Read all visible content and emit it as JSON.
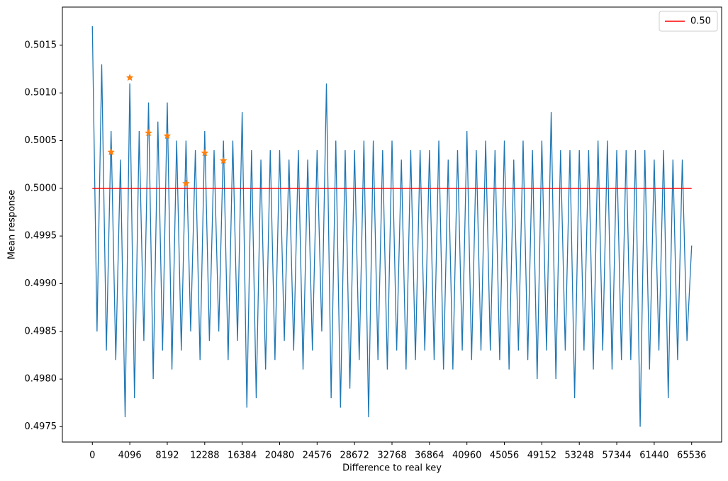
{
  "chart_data": {
    "type": "line",
    "xlabel": "Difference to real key",
    "ylabel": "Mean response",
    "xlim": [
      -3277,
      68812
    ],
    "ylim": [
      0.49734,
      0.5019
    ],
    "xticks": [
      0,
      4096,
      8192,
      12288,
      16384,
      20480,
      24576,
      28672,
      32768,
      36864,
      40960,
      45056,
      49152,
      53248,
      57344,
      61440,
      65536
    ],
    "yticks": [
      0.4975,
      {
        "value": 0.498,
        "label": "0.4980"
      },
      0.4985,
      {
        "value": 0.499,
        "label": "0.4990"
      },
      0.4995,
      {
        "value": 0.5,
        "label": "0.5000"
      },
      0.5005,
      {
        "value": 0.501,
        "label": "0.5010"
      },
      0.5015
    ],
    "legend": "upper right",
    "series": [
      {
        "color": "#1f77b4",
        "marker": "none",
        "x": [
          0,
          512,
          1024,
          1536,
          2048,
          2560,
          3072,
          3584,
          4096,
          4608,
          5120,
          5632,
          6144,
          6656,
          7168,
          7680,
          8192,
          8704,
          9216,
          9728,
          10240,
          10752,
          11264,
          11776,
          12288,
          12800,
          13312,
          13824,
          14336,
          14848,
          15360,
          15872,
          16384,
          16896,
          17408,
          17920,
          18432,
          18944,
          19456,
          19968,
          20480,
          20992,
          21504,
          22016,
          22528,
          23040,
          23552,
          24064,
          24576,
          25088,
          25600,
          26112,
          26624,
          27136,
          27648,
          28160,
          28672,
          29184,
          29696,
          30208,
          30720,
          31232,
          31744,
          32256,
          32768,
          33280,
          33792,
          34304,
          34816,
          35328,
          35840,
          36352,
          36864,
          37376,
          37888,
          38400,
          38912,
          39424,
          39936,
          40448,
          40960,
          41472,
          41984,
          42496,
          43008,
          43520,
          44032,
          44544,
          45056,
          45568,
          46080,
          46592,
          47104,
          47616,
          48128,
          48640,
          49152,
          49664,
          50176,
          50688,
          51200,
          51712,
          52224,
          52736,
          53248,
          53760,
          54272,
          54784,
          55296,
          55808,
          56320,
          56832,
          57344,
          57856,
          58368,
          58880,
          59392,
          59904,
          60416,
          60928,
          61440,
          61952,
          62464,
          62976,
          63488,
          64000,
          64512,
          65024,
          65536
        ],
        "values": [
          0.5017,
          0.4985,
          0.5013,
          0.4983,
          0.5006,
          0.4982,
          0.5003,
          0.4976,
          0.5011,
          0.4978,
          0.5006,
          0.4984,
          0.5009,
          0.498,
          0.5007,
          0.4983,
          0.5009,
          0.4981,
          0.5005,
          0.4983,
          0.5005,
          0.4985,
          0.5004,
          0.4982,
          0.5006,
          0.4984,
          0.5004,
          0.4985,
          0.5005,
          0.4982,
          0.5005,
          0.4984,
          0.5008,
          0.4977,
          0.5004,
          0.4978,
          0.5003,
          0.4981,
          0.5004,
          0.4982,
          0.5004,
          0.4984,
          0.5003,
          0.4983,
          0.5004,
          0.4981,
          0.5003,
          0.4983,
          0.5004,
          0.4985,
          0.5011,
          0.4978,
          0.5005,
          0.4977,
          0.5004,
          0.4979,
          0.5004,
          0.4982,
          0.5005,
          0.4976,
          0.5005,
          0.4982,
          0.5004,
          0.4981,
          0.5005,
          0.4983,
          0.5003,
          0.4981,
          0.5004,
          0.4982,
          0.5004,
          0.4983,
          0.5004,
          0.4982,
          0.5005,
          0.4981,
          0.5003,
          0.4981,
          0.5004,
          0.4983,
          0.5006,
          0.4982,
          0.5004,
          0.4983,
          0.5005,
          0.4983,
          0.5004,
          0.4982,
          0.5005,
          0.4981,
          0.5003,
          0.4983,
          0.5005,
          0.4982,
          0.5004,
          0.498,
          0.5005,
          0.4983,
          0.5008,
          0.498,
          0.5004,
          0.4983,
          0.5004,
          0.4978,
          0.5004,
          0.4983,
          0.5004,
          0.4981,
          0.5005,
          0.4983,
          0.5005,
          0.4981,
          0.5004,
          0.4982,
          0.5004,
          0.4982,
          0.5004,
          0.4975,
          0.5004,
          0.4981,
          0.5003,
          0.4983,
          0.5004,
          0.4978,
          0.5003,
          0.4982,
          0.5003,
          0.4984,
          0.4994
        ]
      },
      {
        "name": "0.50",
        "color": "#ff0000",
        "marker": "none",
        "x": [
          0,
          65535
        ],
        "values": [
          0.5,
          0.5
        ]
      },
      {
        "color": "#ff7f0e",
        "marker": "star",
        "x": [
          2048,
          4096,
          6144,
          8192,
          10240,
          12288,
          14336
        ],
        "values": [
          0.50038,
          0.50116,
          0.50058,
          0.50055,
          0.50005,
          0.50037,
          0.50029
        ]
      }
    ]
  }
}
